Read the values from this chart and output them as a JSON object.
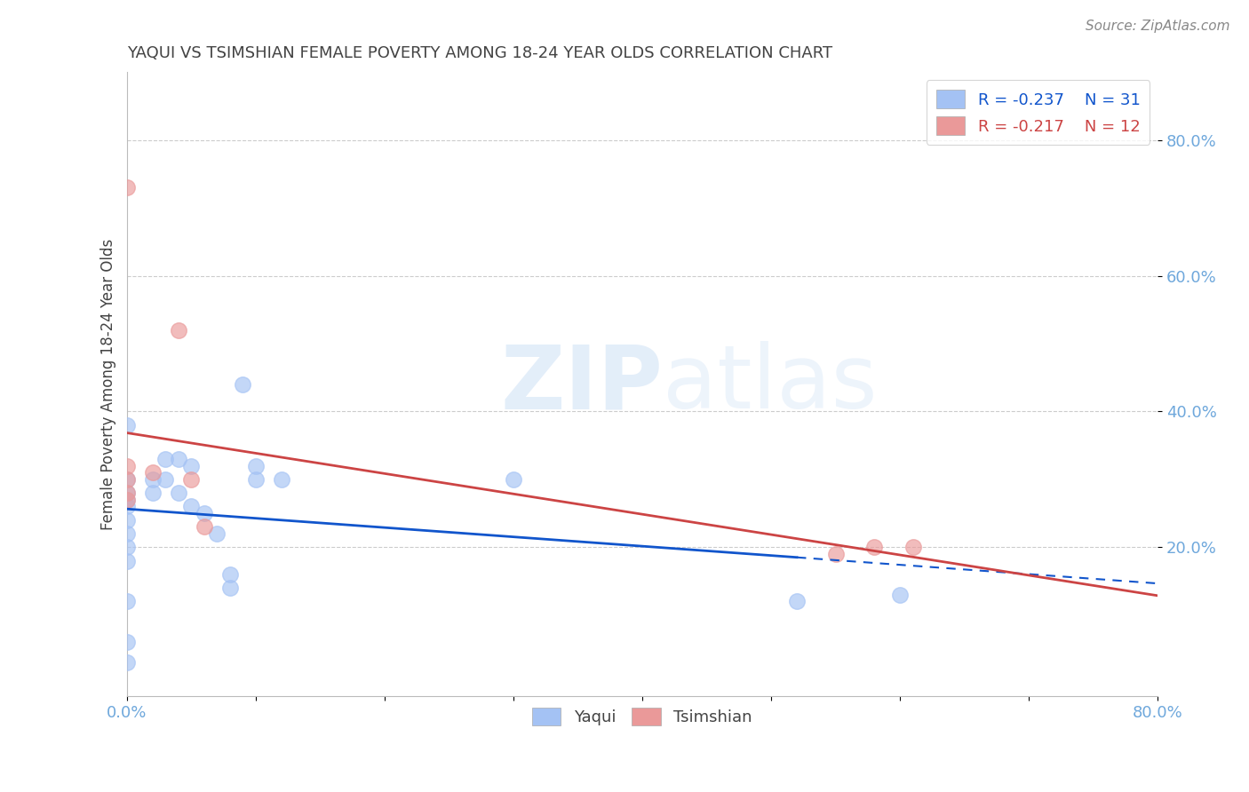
{
  "title": "YAQUI VS TSIMSHIAN FEMALE POVERTY AMONG 18-24 YEAR OLDS CORRELATION CHART",
  "source_text": "Source: ZipAtlas.com",
  "ylabel": "Female Poverty Among 18-24 Year Olds",
  "xlim": [
    0.0,
    0.8
  ],
  "ylim": [
    -0.02,
    0.9
  ],
  "ytick_positions": [
    0.2,
    0.4,
    0.6,
    0.8
  ],
  "ytick_labels": [
    "20.0%",
    "40.0%",
    "60.0%",
    "80.0%"
  ],
  "xtick_positions": [
    0.0,
    0.1,
    0.2,
    0.3,
    0.4,
    0.5,
    0.6,
    0.7,
    0.8
  ],
  "xtick_labels": [
    "0.0%",
    "",
    "",
    "",
    "",
    "",
    "",
    "",
    "80.0%"
  ],
  "yaqui_x": [
    0.0,
    0.0,
    0.0,
    0.0,
    0.0,
    0.0,
    0.0,
    0.0,
    0.0,
    0.0,
    0.0,
    0.0,
    0.02,
    0.02,
    0.03,
    0.03,
    0.04,
    0.04,
    0.05,
    0.05,
    0.06,
    0.07,
    0.08,
    0.08,
    0.09,
    0.1,
    0.1,
    0.12,
    0.3,
    0.52,
    0.6
  ],
  "yaqui_y": [
    0.03,
    0.06,
    0.12,
    0.18,
    0.2,
    0.22,
    0.24,
    0.26,
    0.27,
    0.28,
    0.3,
    0.38,
    0.28,
    0.3,
    0.3,
    0.33,
    0.28,
    0.33,
    0.26,
    0.32,
    0.25,
    0.22,
    0.14,
    0.16,
    0.44,
    0.3,
    0.32,
    0.3,
    0.3,
    0.12,
    0.13
  ],
  "tsimshian_x": [
    0.0,
    0.0,
    0.0,
    0.0,
    0.0,
    0.02,
    0.04,
    0.05,
    0.06,
    0.55,
    0.58,
    0.61
  ],
  "tsimshian_y": [
    0.73,
    0.27,
    0.28,
    0.3,
    0.32,
    0.31,
    0.52,
    0.3,
    0.23,
    0.19,
    0.2,
    0.2
  ],
  "yaqui_color": "#a4c2f4",
  "tsimshian_color": "#ea9999",
  "yaqui_line_color": "#1155cc",
  "tsimshian_line_color": "#cc4444",
  "R_yaqui": -0.237,
  "N_yaqui": 31,
  "R_tsimshian": -0.217,
  "N_tsimshian": 12,
  "watermark_zip": "ZIP",
  "watermark_atlas": "atlas",
  "background_color": "#ffffff",
  "grid_color": "#cccccc",
  "tick_color": "#6fa8dc",
  "title_color": "#434343",
  "label_color": "#434343",
  "source_color": "#888888",
  "legend_text_color": "#1155cc",
  "legend_text_color2": "#cc4444"
}
